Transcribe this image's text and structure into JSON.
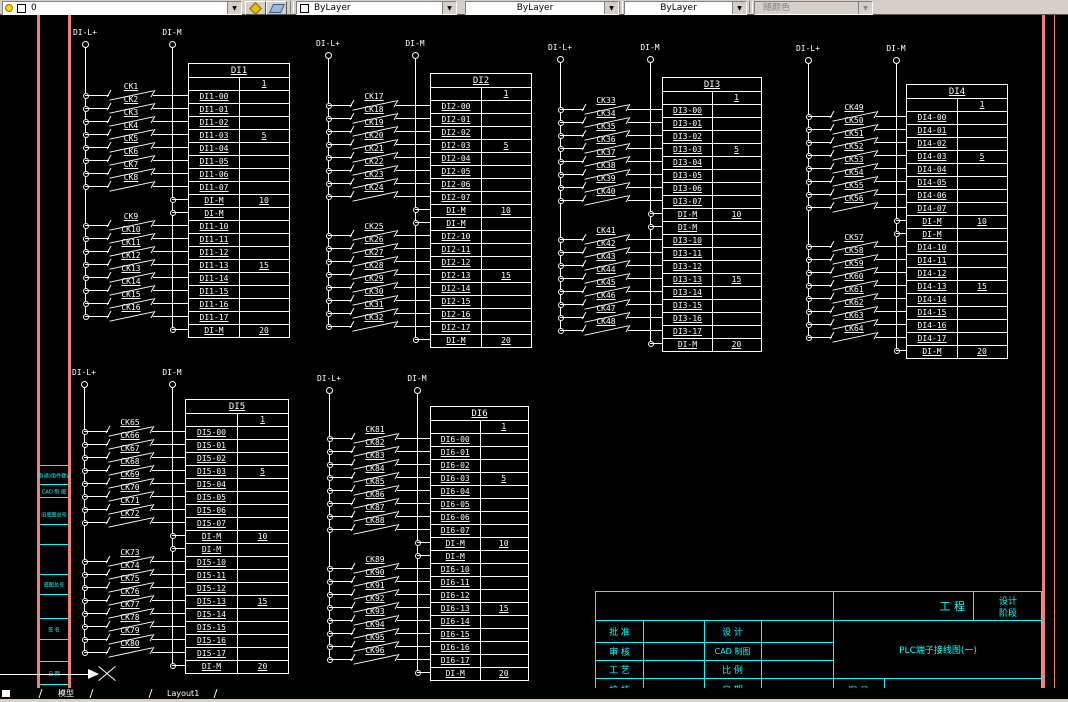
{
  "toolbar": {
    "layer": {
      "value": "0"
    },
    "color": {
      "value": "ByLayer"
    },
    "linetype": {
      "value": "ByLayer"
    },
    "lineweight": {
      "value": "ByLayer"
    },
    "plot_style": {
      "value": "随颜色"
    }
  },
  "canvas": {
    "bus_plus_label": "DI-L+",
    "bus_minus_label": "DI-M",
    "sidebar_fields": [
      "借(通)用件登记",
      "CAD 制 图",
      "旧底图总号",
      "底图总号",
      "签 名",
      "日 期"
    ],
    "diagrams": [
      {
        "id": "DI1",
        "switches": [
          "CK1",
          "CK2",
          "CK3",
          "CK4",
          "CK5",
          "CK6",
          "CK7",
          "CK8",
          "CK9",
          "CK10",
          "CK11",
          "CK12",
          "CK13",
          "CK14",
          "CK15",
          "CK16"
        ],
        "rows": [
          {
            "t": "",
            "n": "1"
          },
          {
            "t": "DI1-00",
            "n": ""
          },
          {
            "t": "DI1-01",
            "n": ""
          },
          {
            "t": "DI1-02",
            "n": ""
          },
          {
            "t": "DI1-03",
            "n": "5"
          },
          {
            "t": "DI1-04",
            "n": ""
          },
          {
            "t": "DI1-05",
            "n": ""
          },
          {
            "t": "DI1-06",
            "n": ""
          },
          {
            "t": "DI1-07",
            "n": ""
          },
          {
            "t": "DI-M",
            "n": "10"
          },
          {
            "t": "DI-M",
            "n": ""
          },
          {
            "t": "DI1-10",
            "n": ""
          },
          {
            "t": "DI1-11",
            "n": ""
          },
          {
            "t": "DI1-12",
            "n": ""
          },
          {
            "t": "DI1-13",
            "n": "15"
          },
          {
            "t": "DI1-14",
            "n": ""
          },
          {
            "t": "DI1-15",
            "n": ""
          },
          {
            "t": "DI1-16",
            "n": ""
          },
          {
            "t": "DI1-17",
            "n": ""
          },
          {
            "t": "DI-M",
            "n": "20"
          }
        ]
      },
      {
        "id": "DI2",
        "switches": [
          "CK17",
          "CK18",
          "CK19",
          "CK20",
          "CK21",
          "CK22",
          "CK23",
          "CK24",
          "CK25",
          "CK26",
          "CK27",
          "CK28",
          "CK29",
          "CK30",
          "CK31",
          "CK32"
        ],
        "rows": [
          {
            "t": "",
            "n": "1"
          },
          {
            "t": "DI2-00",
            "n": ""
          },
          {
            "t": "DI2-01",
            "n": ""
          },
          {
            "t": "DI2-02",
            "n": ""
          },
          {
            "t": "DI2-03",
            "n": "5"
          },
          {
            "t": "DI2-04",
            "n": ""
          },
          {
            "t": "DI2-05",
            "n": ""
          },
          {
            "t": "DI2-06",
            "n": ""
          },
          {
            "t": "DI2-07",
            "n": ""
          },
          {
            "t": "DI-M",
            "n": "10"
          },
          {
            "t": "DI-M",
            "n": ""
          },
          {
            "t": "DI2-10",
            "n": ""
          },
          {
            "t": "DI2-11",
            "n": ""
          },
          {
            "t": "DI2-12",
            "n": ""
          },
          {
            "t": "DI2-13",
            "n": "15"
          },
          {
            "t": "DI2-14",
            "n": ""
          },
          {
            "t": "DI2-15",
            "n": ""
          },
          {
            "t": "DI2-16",
            "n": ""
          },
          {
            "t": "DI2-17",
            "n": ""
          },
          {
            "t": "DI-M",
            "n": "20"
          }
        ]
      },
      {
        "id": "DI3",
        "switches": [
          "CK33",
          "CK34",
          "CK35",
          "CK36",
          "CK37",
          "CK38",
          "CK39",
          "CK40",
          "CK41",
          "CK42",
          "CK43",
          "CK44",
          "CK45",
          "CK46",
          "CK47",
          "CK48"
        ],
        "rows": [
          {
            "t": "",
            "n": "1"
          },
          {
            "t": "DI3-00",
            "n": ""
          },
          {
            "t": "DI3-01",
            "n": ""
          },
          {
            "t": "DI3-02",
            "n": ""
          },
          {
            "t": "DI3-03",
            "n": "5"
          },
          {
            "t": "DI3-04",
            "n": ""
          },
          {
            "t": "DI3-05",
            "n": ""
          },
          {
            "t": "DI3-06",
            "n": ""
          },
          {
            "t": "DI3-07",
            "n": ""
          },
          {
            "t": "DI-M",
            "n": "10"
          },
          {
            "t": "DI-M",
            "n": ""
          },
          {
            "t": "DI3-10",
            "n": ""
          },
          {
            "t": "DI3-11",
            "n": ""
          },
          {
            "t": "DI3-12",
            "n": ""
          },
          {
            "t": "DI3-13",
            "n": "15"
          },
          {
            "t": "DI3-14",
            "n": ""
          },
          {
            "t": "DI3-15",
            "n": ""
          },
          {
            "t": "DI3-16",
            "n": ""
          },
          {
            "t": "DI3-17",
            "n": ""
          },
          {
            "t": "DI-M",
            "n": "20"
          }
        ]
      },
      {
        "id": "DI4",
        "switches": [
          "CK49",
          "CK50",
          "CK51",
          "CK52",
          "CK53",
          "CK54",
          "CK55",
          "CK56",
          "CK57",
          "CK58",
          "CK59",
          "CK60",
          "CK61",
          "CK62",
          "CK63",
          "CK64"
        ],
        "rows": [
          {
            "t": "",
            "n": "1"
          },
          {
            "t": "DI4-00",
            "n": ""
          },
          {
            "t": "DI4-01",
            "n": ""
          },
          {
            "t": "DI4-02",
            "n": ""
          },
          {
            "t": "DI4-03",
            "n": "5"
          },
          {
            "t": "DI4-04",
            "n": ""
          },
          {
            "t": "DI4-05",
            "n": ""
          },
          {
            "t": "DI4-06",
            "n": ""
          },
          {
            "t": "DI4-07",
            "n": ""
          },
          {
            "t": "DI-M",
            "n": "10"
          },
          {
            "t": "DI-M",
            "n": ""
          },
          {
            "t": "DI4-10",
            "n": ""
          },
          {
            "t": "DI4-11",
            "n": ""
          },
          {
            "t": "DI4-12",
            "n": ""
          },
          {
            "t": "DI4-13",
            "n": "15"
          },
          {
            "t": "DI4-14",
            "n": ""
          },
          {
            "t": "DI4-15",
            "n": ""
          },
          {
            "t": "DI4-16",
            "n": ""
          },
          {
            "t": "DI4-17",
            "n": ""
          },
          {
            "t": "DI-M",
            "n": "20"
          }
        ]
      },
      {
        "id": "DI5",
        "switches": [
          "CK65",
          "CK66",
          "CK67",
          "CK68",
          "CK69",
          "CK70",
          "CK71",
          "CK72",
          "CK73",
          "CK74",
          "CK75",
          "CK76",
          "CK77",
          "CK78",
          "CK79",
          "CK80"
        ],
        "rows": [
          {
            "t": "",
            "n": "1"
          },
          {
            "t": "DI5-00",
            "n": ""
          },
          {
            "t": "DI5-01",
            "n": ""
          },
          {
            "t": "DI5-02",
            "n": ""
          },
          {
            "t": "DI5-03",
            "n": "5"
          },
          {
            "t": "DI5-04",
            "n": ""
          },
          {
            "t": "DI5-05",
            "n": ""
          },
          {
            "t": "DI5-06",
            "n": ""
          },
          {
            "t": "DI5-07",
            "n": ""
          },
          {
            "t": "DI-M",
            "n": "10"
          },
          {
            "t": "DI-M",
            "n": ""
          },
          {
            "t": "DI5-10",
            "n": ""
          },
          {
            "t": "DI5-11",
            "n": ""
          },
          {
            "t": "DI5-12",
            "n": ""
          },
          {
            "t": "DI5-13",
            "n": "15"
          },
          {
            "t": "DI5-14",
            "n": ""
          },
          {
            "t": "DI5-15",
            "n": ""
          },
          {
            "t": "DI5-16",
            "n": ""
          },
          {
            "t": "DI5-17",
            "n": ""
          },
          {
            "t": "DI-M",
            "n": "20"
          }
        ]
      },
      {
        "id": "DI6",
        "switches": [
          "CK81",
          "CK82",
          "CK83",
          "CK84",
          "CK85",
          "CK86",
          "CK87",
          "CK88",
          "CK89",
          "CK90",
          "CK91",
          "CK92",
          "CK93",
          "CK94",
          "CK95",
          "CK96"
        ],
        "rows": [
          {
            "t": "",
            "n": "1"
          },
          {
            "t": "DI6-00",
            "n": ""
          },
          {
            "t": "DI6-01",
            "n": ""
          },
          {
            "t": "DI6-02",
            "n": ""
          },
          {
            "t": "DI6-03",
            "n": "5"
          },
          {
            "t": "DI6-04",
            "n": ""
          },
          {
            "t": "DI6-05",
            "n": ""
          },
          {
            "t": "DI6-06",
            "n": ""
          },
          {
            "t": "DI6-07",
            "n": ""
          },
          {
            "t": "DI-M",
            "n": "10"
          },
          {
            "t": "DI-M",
            "n": ""
          },
          {
            "t": "DI6-10",
            "n": ""
          },
          {
            "t": "DI6-11",
            "n": ""
          },
          {
            "t": "DI6-12",
            "n": ""
          },
          {
            "t": "DI6-13",
            "n": "15"
          },
          {
            "t": "DI6-14",
            "n": ""
          },
          {
            "t": "DI6-15",
            "n": ""
          },
          {
            "t": "DI6-16",
            "n": ""
          },
          {
            "t": "DI6-17",
            "n": ""
          },
          {
            "t": "DI-M",
            "n": "20"
          }
        ]
      }
    ]
  },
  "titleblock": {
    "project_label": "工 程",
    "stage_line1": "设计",
    "stage_line2": "阶段",
    "title": "PLC端子接线图(一)",
    "drawing_no_label": "图 号",
    "rows": [
      {
        "l1": "批  准",
        "l2": "设  计"
      },
      {
        "l1": "审  核",
        "l2": "CAD 制图"
      },
      {
        "l1": "工  艺",
        "l2": "比  例"
      },
      {
        "l1": "校  核",
        "l2": "日  期"
      }
    ]
  },
  "tabs": {
    "model": "模型",
    "layout": "Layout1"
  },
  "colors": {
    "frame": "#f08080",
    "annotation": "#00ffff",
    "drawing": "#ffffff",
    "canvas": "#000000"
  }
}
